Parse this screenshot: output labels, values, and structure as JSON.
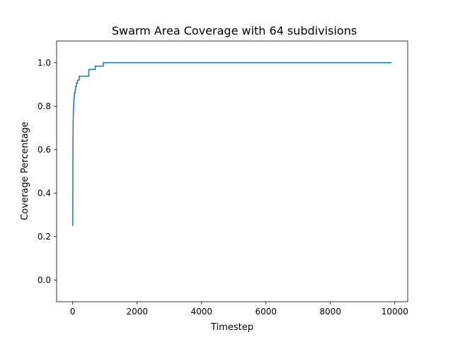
{
  "chart_data": {
    "type": "line",
    "title": "Swarm Area Coverage with 64 subdivisions",
    "xlabel": "Timestep",
    "ylabel": "Coverage Percentage",
    "xlim": [
      -500,
      10400
    ],
    "ylim": [
      -0.1,
      1.1
    ],
    "x_ticks": [
      0,
      2000,
      4000,
      6000,
      8000,
      10000
    ],
    "x_tick_labels": [
      "0",
      "2000",
      "4000",
      "6000",
      "8000",
      "10000"
    ],
    "y_ticks": [
      0.0,
      0.2,
      0.4,
      0.6,
      0.8,
      1.0
    ],
    "y_tick_labels": [
      "0.0",
      "0.2",
      "0.4",
      "0.6",
      "0.8",
      "1.0"
    ],
    "grid": false,
    "legend": "none",
    "line_color": "#1f77b4",
    "series": [
      {
        "step": "post",
        "x": [
          0,
          2,
          4,
          6,
          8,
          10,
          12,
          15,
          18,
          22,
          26,
          30,
          35,
          40,
          50,
          60,
          75,
          90,
          110,
          130,
          150,
          170,
          200,
          300,
          500,
          700,
          950,
          9900
        ],
        "y": [
          0.25,
          0.39,
          0.55,
          0.61,
          0.66,
          0.7,
          0.73,
          0.75,
          0.77,
          0.78,
          0.8,
          0.81,
          0.83,
          0.84,
          0.86,
          0.86,
          0.875,
          0.89,
          0.906,
          0.906,
          0.92,
          0.92,
          0.938,
          0.938,
          0.969,
          0.984,
          1.0,
          1.0
        ]
      }
    ]
  }
}
